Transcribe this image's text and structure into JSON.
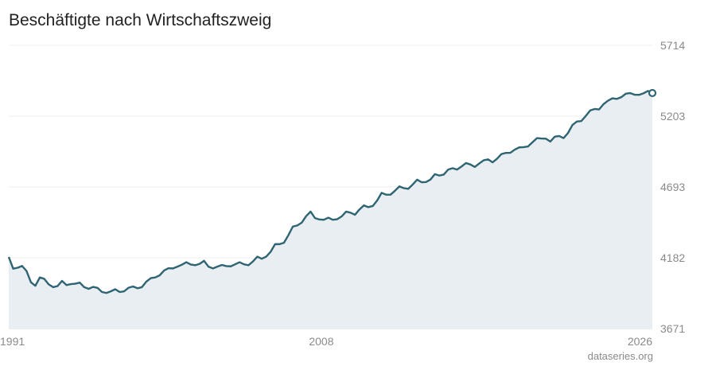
{
  "title": "Beschäftigte nach Wirtschaftszweig",
  "source": "dataseries.org",
  "chart_data": {
    "type": "area",
    "title": "Beschäftigte nach Wirtschaftszweig",
    "xlabel": "",
    "ylabel": "",
    "x_start": 1991,
    "x_end": 2026,
    "x_ticks": [
      "1991",
      "2008",
      "2026"
    ],
    "y_ticks": [
      3671,
      4182,
      4693,
      5203,
      5714
    ],
    "ylim": [
      3671,
      5714
    ],
    "grid": true,
    "line_color": "#2f6472",
    "fill_color": "#e8eef1",
    "series": [
      {
        "values": [
          4188,
          4103,
          4110,
          4123,
          4087,
          4005,
          3980,
          4040,
          4030,
          3990,
          3970,
          3978,
          4015,
          3985,
          3992,
          3995,
          4003,
          3970,
          3958,
          3972,
          3965,
          3935,
          3928,
          3940,
          3955,
          3935,
          3940,
          3966,
          3975,
          3962,
          3970,
          4010,
          4035,
          4040,
          4055,
          4090,
          4107,
          4105,
          4118,
          4132,
          4150,
          4133,
          4128,
          4138,
          4160,
          4118,
          4105,
          4118,
          4130,
          4122,
          4120,
          4135,
          4150,
          4135,
          4128,
          4155,
          4190,
          4175,
          4190,
          4225,
          4280,
          4280,
          4290,
          4345,
          4407,
          4415,
          4435,
          4482,
          4515,
          4468,
          4458,
          4456,
          4471,
          4456,
          4460,
          4480,
          4515,
          4507,
          4492,
          4530,
          4560,
          4547,
          4555,
          4595,
          4650,
          4637,
          4637,
          4665,
          4697,
          4684,
          4679,
          4710,
          4745,
          4727,
          4728,
          4746,
          4785,
          4775,
          4782,
          4818,
          4828,
          4818,
          4840,
          4865,
          4855,
          4837,
          4862,
          4885,
          4892,
          4870,
          4896,
          4930,
          4938,
          4939,
          4962,
          4978,
          4980,
          4985,
          5015,
          5045,
          5042,
          5041,
          5020,
          5055,
          5060,
          5045,
          5082,
          5140,
          5165,
          5168,
          5205,
          5245,
          5255,
          5252,
          5290,
          5315,
          5332,
          5328,
          5340,
          5365,
          5370,
          5358,
          5357,
          5368,
          5385,
          5370
        ]
      }
    ]
  }
}
